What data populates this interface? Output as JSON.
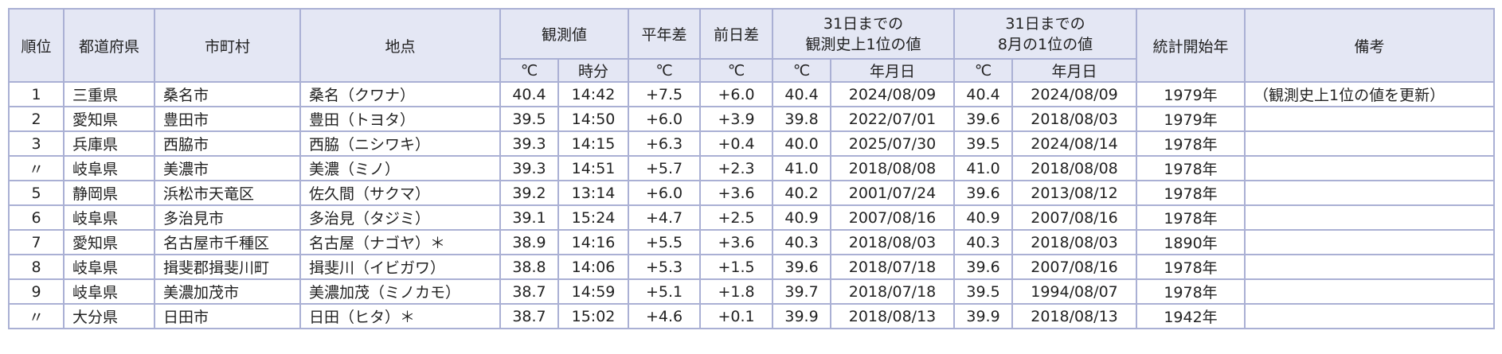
{
  "table": {
    "header": {
      "rank": "順位",
      "prefecture": "都道府県",
      "city": "市町村",
      "station": "地点",
      "observed": "観測値",
      "normal_diff": "平年差",
      "prev_diff": "前日差",
      "record_all": [
        "31日までの",
        "観測史上1位の値"
      ],
      "record_aug": [
        "31日までの",
        "8月の1位の値"
      ],
      "start_year": "統計開始年",
      "remarks": "備考",
      "sub": [
        "℃",
        "時分",
        "℃",
        "℃",
        "℃",
        "年月日",
        "℃",
        "年月日"
      ]
    },
    "rows": [
      [
        "1",
        "三重県",
        "桑名市",
        "桑名（クワナ）",
        "40.4",
        "14:42",
        "+7.5",
        "+6.0",
        "40.4",
        "2024/08/09",
        "40.4",
        "2024/08/09",
        "1979年",
        "（観測史上1位の値を更新）"
      ],
      [
        "2",
        "愛知県",
        "豊田市",
        "豊田（トヨタ）",
        "39.5",
        "14:50",
        "+6.0",
        "+3.9",
        "39.8",
        "2022/07/01",
        "39.6",
        "2018/08/03",
        "1979年"
      ],
      [
        "3",
        "兵庫県",
        "西脇市",
        "西脇（ニシワキ）",
        "39.3",
        "14:15",
        "+6.3",
        "+0.4",
        "40.0",
        "2025/07/30",
        "39.5",
        "2024/08/14",
        "1978年"
      ],
      [
        "〃",
        "岐阜県",
        "美濃市",
        "美濃（ミノ）",
        "39.3",
        "14:51",
        "+5.7",
        "+2.3",
        "41.0",
        "2018/08/08",
        "41.0",
        "2018/08/08",
        "1978年"
      ],
      [
        "5",
        "静岡県",
        "浜松市天竜区",
        "佐久間（サクマ）",
        "39.2",
        "13:14",
        "+6.0",
        "+3.6",
        "40.2",
        "2001/07/24",
        "39.6",
        "2013/08/12",
        "1978年"
      ],
      [
        "6",
        "岐阜県",
        "多治見市",
        "多治見（タジミ）",
        "39.1",
        "15:24",
        "+4.7",
        "+2.5",
        "40.9",
        "2007/08/16",
        "40.9",
        "2007/08/16",
        "1978年"
      ],
      [
        "7",
        "愛知県",
        "名古屋市千種区",
        "名古屋（ナゴヤ）＊",
        "38.9",
        "14:16",
        "+5.5",
        "+3.6",
        "40.3",
        "2018/08/03",
        "40.3",
        "2018/08/03",
        "1890年"
      ],
      [
        "8",
        "岐阜県",
        "揖斐郡揖斐川町",
        "揖斐川（イビガワ）",
        "38.8",
        "14:06",
        "+5.3",
        "+1.5",
        "39.6",
        "2018/07/18",
        "39.6",
        "2007/08/16",
        "1978年"
      ],
      [
        "9",
        "岐阜県",
        "美濃加茂市",
        "美濃加茂（ミノカモ）",
        "38.7",
        "14:59",
        "+5.1",
        "+1.8",
        "39.7",
        "2018/07/18",
        "39.5",
        "1994/08/07",
        "1978年"
      ],
      [
        "〃",
        "大分県",
        "日田市",
        "日田（ヒタ）＊",
        "38.7",
        "15:02",
        "+4.6",
        "+0.1",
        "39.9",
        "2018/08/13",
        "39.9",
        "2018/08/13",
        "1942年"
      ]
    ]
  }
}
